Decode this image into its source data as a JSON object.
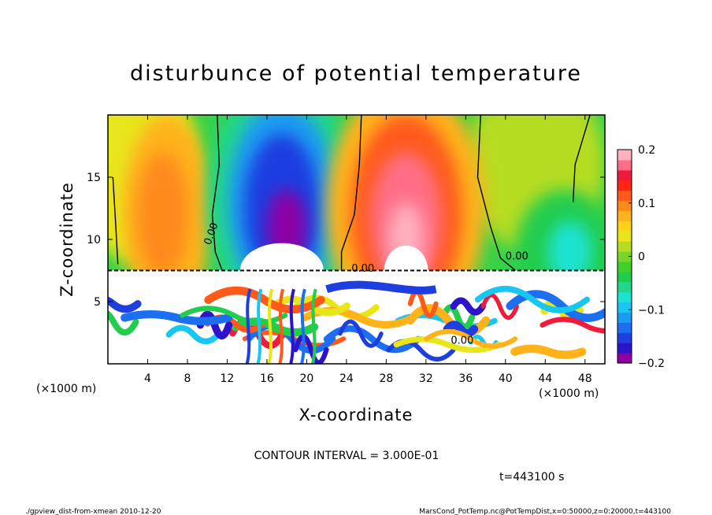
{
  "chart_data": {
    "type": "heatmap",
    "title": "disturbunce of potential temperature",
    "xlabel": "X-coordinate",
    "ylabel": "Z-coordinate",
    "x_unit": "(×1000 m)",
    "y_unit": "(×1000 m)",
    "xlim": [
      0,
      50
    ],
    "ylim": [
      0,
      20
    ],
    "x_ticks": [
      "4",
      "8",
      "12",
      "16",
      "20",
      "24",
      "28",
      "32",
      "36",
      "40",
      "44",
      "48"
    ],
    "y_ticks": [
      "5",
      "10",
      "15"
    ],
    "colorbar": {
      "range": [
        -0.2,
        0.2
      ],
      "ticks": [
        "0.2",
        "0.1",
        "0",
        "−0.1",
        "−0.2"
      ],
      "colors": [
        "#8c00a6",
        "#2e14c8",
        "#1f3ee0",
        "#1c6ff0",
        "#1a9cf2",
        "#18c6f0",
        "#1ce2d2",
        "#21d78a",
        "#22cd4e",
        "#42cf2c",
        "#7bd528",
        "#b6dc20",
        "#e8e61a",
        "#ffd218",
        "#ffb21a",
        "#ff8a1a",
        "#ff5a1a",
        "#ff2414",
        "#ef1a3c",
        "#ff6e86",
        "#ffb0be"
      ]
    },
    "contour_labels": [
      "0.00",
      "0.00",
      "0.00",
      "0.00"
    ],
    "contour_interval": "CONTOUR INTERVAL = 3.000E-01",
    "time_label": "t=443100 s",
    "features": [
      {
        "name": "negative anomaly",
        "x": 17,
        "z": 13,
        "value": -0.2
      },
      {
        "name": "positive anomaly",
        "x": 30,
        "z": 13,
        "value": 0.2
      },
      {
        "name": "positive anomaly",
        "x": 5.5,
        "z": 12,
        "value": 0.1
      },
      {
        "name": "negative anomaly",
        "x": 46,
        "z": 9,
        "value": -0.08
      }
    ]
  },
  "footer": {
    "left": "./gpview_dist-from-xmean  2010-12-20",
    "right": "MarsCond_PotTemp.nc@PotTempDist,x=0:50000,z=0:20000,t=443100"
  }
}
